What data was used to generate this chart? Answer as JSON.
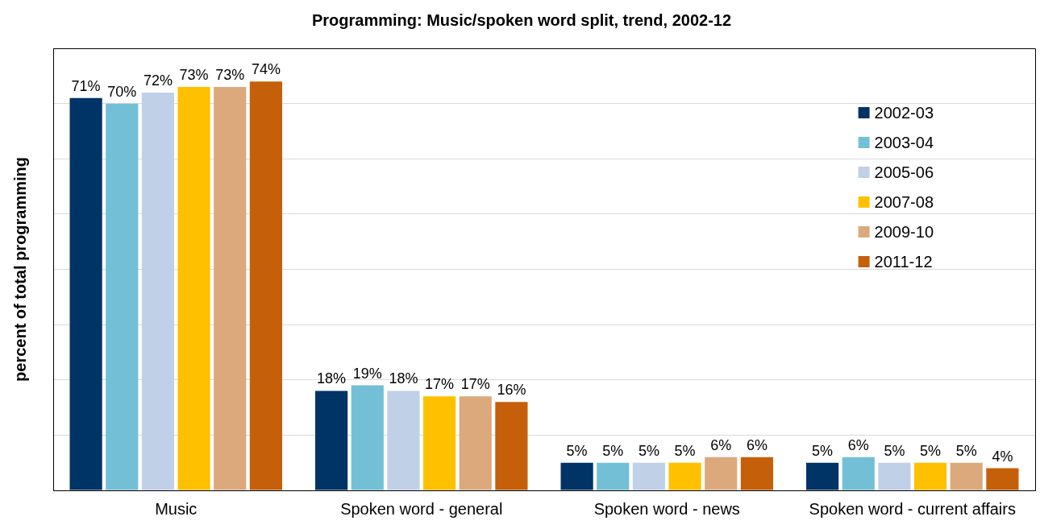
{
  "chart_data": {
    "type": "bar",
    "title": "Programming: Music/spoken word split, trend, 2002-12",
    "ylabel": "percent of total programming",
    "categories": [
      "Music",
      "Spoken word - general",
      "Spoken word - news",
      "Spoken word - current affairs"
    ],
    "series": [
      {
        "name": "2002-03",
        "color": "#003366",
        "values": [
          71,
          18,
          5,
          5
        ],
        "value_labels": [
          "71%",
          "18%",
          "5%",
          "5%"
        ]
      },
      {
        "name": "2003-04",
        "color": "#73c0d6",
        "values": [
          70,
          19,
          5,
          6
        ],
        "value_labels": [
          "70%",
          "19%",
          "5%",
          "6%"
        ]
      },
      {
        "name": "2005-06",
        "color": "#c0d0e6",
        "values": [
          72,
          18,
          5,
          5
        ],
        "value_labels": [
          "72%",
          "18%",
          "5%",
          "5%"
        ]
      },
      {
        "name": "2007-08",
        "color": "#ffc000",
        "values": [
          73,
          17,
          5,
          5
        ],
        "value_labels": [
          "73%",
          "17%",
          "5%",
          "5%"
        ]
      },
      {
        "name": "2009-10",
        "color": "#dba97c",
        "values": [
          73,
          17,
          6,
          5
        ],
        "value_labels": [
          "73%",
          "17%",
          "6%",
          "5%"
        ]
      },
      {
        "name": "2011-12",
        "color": "#c65f0a",
        "values": [
          74,
          16,
          6,
          4
        ],
        "value_labels": [
          "74%",
          "16%",
          "6%",
          "4%"
        ]
      }
    ],
    "tick_labels": "x",
    "grid": "y",
    "legend": "top right"
  }
}
